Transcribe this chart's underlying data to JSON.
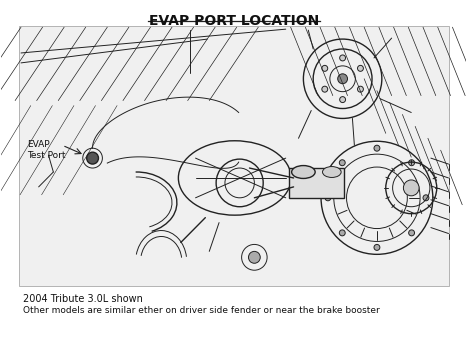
{
  "title": "EVAP PORT LOCATION",
  "title_fontsize": 10,
  "title_underline": true,
  "label_evap": "EVAP\nTest Port",
  "caption_line1": "2004 Tribute 3.0L shown",
  "caption_line2": "Other models are similar ether on driver side fender or near the brake booster",
  "bg_color": "#ffffff",
  "diagram_bg": "#f5f5f5",
  "line_color": "#222222",
  "text_color": "#111111",
  "fig_width": 4.74,
  "fig_height": 3.46,
  "dpi": 100
}
